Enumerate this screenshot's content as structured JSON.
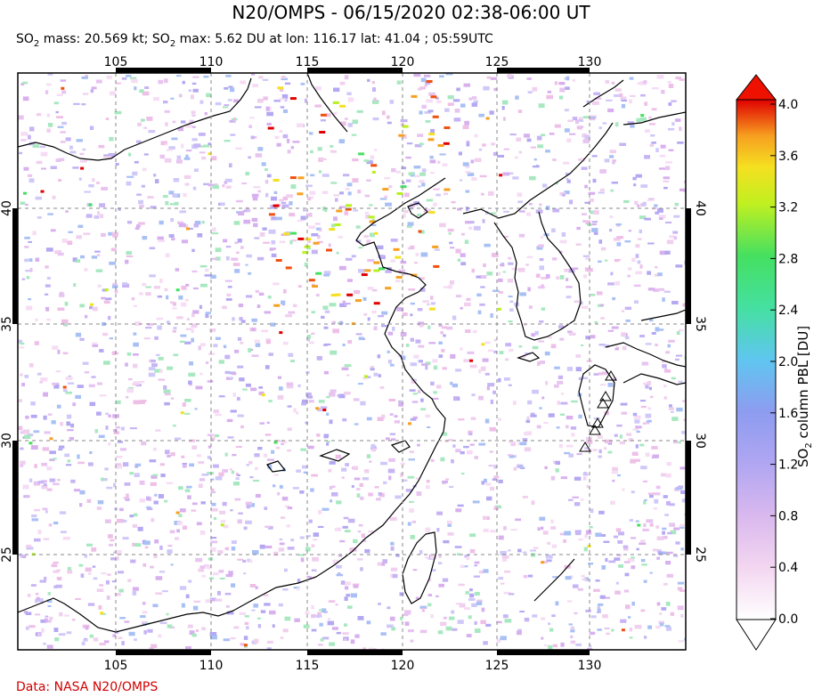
{
  "title": "N20/OMPS - 06/15/2020 02:38-06:00 UT",
  "subtitle": {
    "mass_prefix": "SO",
    "mass_sub": "2",
    "mass_text": " mass: 20.569 kt; SO",
    "max_sub": "2",
    "max_text": " max: 5.62 DU at lon: 116.17 lat: 41.04 ; 05:59UTC"
  },
  "credit": "Data: NASA N20/OMPS",
  "map": {
    "lon_ticks": [
      "105",
      "110",
      "115",
      "120",
      "125",
      "130"
    ],
    "lat_ticks": [
      "40",
      "35",
      "30",
      "25"
    ],
    "lon_range": [
      100,
      135
    ],
    "lat_range": [
      20,
      44
    ],
    "volcano_icon": "triangle-volcano-icon"
  },
  "colorbar": {
    "label_prefix": "SO",
    "label_sub": "2",
    "label_text": " column PBL [DU]",
    "ticks": [
      "4.0",
      "3.6",
      "3.2",
      "2.8",
      "2.4",
      "2.0",
      "1.6",
      "1.2",
      "0.8",
      "0.4",
      "0.0"
    ],
    "colors": [
      "#ffffff",
      "#f3d6f0",
      "#d9b8ee",
      "#b0a6f2",
      "#8d9cf0",
      "#5fc6f0",
      "#3fe0c8",
      "#45e060",
      "#b8f020",
      "#f5e020",
      "#f7a020",
      "#f05010",
      "#e00000"
    ],
    "over_color": "#ee1100",
    "under_color": "#ffffff"
  }
}
